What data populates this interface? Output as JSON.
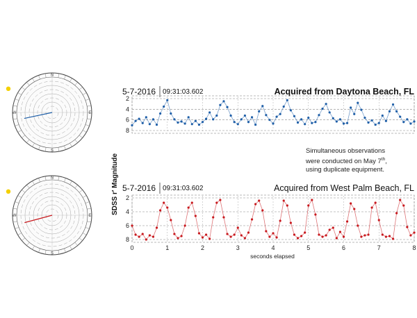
{
  "chart_data": [
    {
      "type": "scatter",
      "date": "5-7-2016",
      "time": "09:31:03.602",
      "title": "Acquired from Daytona Beach, FL",
      "color": "#1f5fa8",
      "x_range": [
        0,
        8
      ],
      "ylim": [
        8,
        2
      ],
      "y_ticks": [
        2,
        4,
        6,
        8
      ],
      "x_ticks": [
        0,
        1,
        2,
        3,
        4,
        5,
        6,
        7,
        8
      ],
      "grid": true,
      "x": [
        0.0,
        0.1,
        0.2,
        0.3,
        0.4,
        0.5,
        0.6,
        0.7,
        0.8,
        0.9,
        1.0,
        1.1,
        1.2,
        1.3,
        1.4,
        1.5,
        1.6,
        1.7,
        1.8,
        1.9,
        2.0,
        2.1,
        2.2,
        2.3,
        2.4,
        2.5,
        2.6,
        2.7,
        2.8,
        2.9,
        3.0,
        3.1,
        3.2,
        3.3,
        3.4,
        3.5,
        3.6,
        3.7,
        3.8,
        3.9,
        4.0,
        4.1,
        4.2,
        4.3,
        4.4,
        4.5,
        4.6,
        4.7,
        4.8,
        4.9,
        5.0,
        5.1,
        5.2,
        5.3,
        5.4,
        5.5,
        5.6,
        5.7,
        5.8,
        5.9,
        6.0,
        6.1,
        6.2,
        6.3,
        6.4,
        6.5,
        6.6,
        6.7,
        6.8,
        6.9,
        7.0,
        7.1,
        7.2,
        7.3,
        7.4,
        7.5,
        7.6,
        7.7,
        7.8,
        7.9,
        8.0
      ],
      "values": [
        7.0,
        6.2,
        5.8,
        6.6,
        5.5,
        6.8,
        5.9,
        6.9,
        4.8,
        3.5,
        2.3,
        4.8,
        5.9,
        6.5,
        6.3,
        6.7,
        5.5,
        6.8,
        6.2,
        6.9,
        6.4,
        5.8,
        4.6,
        5.9,
        5.2,
        3.2,
        2.5,
        3.6,
        5.2,
        6.4,
        6.8,
        5.9,
        5.2,
        6.4,
        5.5,
        6.9,
        4.4,
        3.4,
        5.1,
        6.0,
        6.7,
        5.4,
        4.9,
        3.5,
        2.3,
        4.2,
        5.3,
        6.5,
        5.9,
        6.8,
        5.6,
        6.6,
        6.4,
        5.1,
        3.9,
        3.0,
        4.6,
        5.7,
        6.3,
        5.9,
        6.7,
        6.6,
        3.7,
        4.9,
        2.8,
        4.1,
        5.6,
        6.5,
        6.1,
        6.9,
        6.6,
        5.2,
        6.2,
        4.4,
        3.1,
        4.4,
        5.4,
        6.4,
        5.9,
        6.7,
        6.3
      ]
    },
    {
      "type": "scatter",
      "date": "5-7-2016",
      "time": "09:31:03.602",
      "title": "Acquired from West Palm Beach, FL",
      "color": "#c8191e",
      "x_range": [
        0,
        8
      ],
      "ylim": [
        8,
        2
      ],
      "y_ticks": [
        2,
        4,
        6,
        8
      ],
      "x_ticks": [
        0,
        1,
        2,
        3,
        4,
        5,
        6,
        7,
        8
      ],
      "grid": true,
      "x": [
        0.0,
        0.1,
        0.2,
        0.3,
        0.4,
        0.5,
        0.6,
        0.7,
        0.8,
        0.9,
        1.0,
        1.1,
        1.2,
        1.3,
        1.4,
        1.5,
        1.6,
        1.7,
        1.8,
        1.9,
        2.0,
        2.1,
        2.2,
        2.3,
        2.4,
        2.5,
        2.6,
        2.7,
        2.8,
        2.9,
        3.0,
        3.1,
        3.2,
        3.3,
        3.4,
        3.5,
        3.6,
        3.7,
        3.8,
        3.9,
        4.0,
        4.1,
        4.2,
        4.3,
        4.4,
        4.5,
        4.6,
        4.7,
        4.8,
        4.9,
        5.0,
        5.1,
        5.2,
        5.3,
        5.4,
        5.5,
        5.6,
        5.7,
        5.8,
        5.9,
        6.0,
        6.1,
        6.2,
        6.3,
        6.4,
        6.5,
        6.6,
        6.7,
        6.8,
        6.9,
        7.0,
        7.1,
        7.2,
        7.3,
        7.4,
        7.5,
        7.6,
        7.7,
        7.8,
        7.9,
        8.0
      ],
      "values": [
        6.0,
        7.3,
        7.6,
        7.2,
        8.0,
        7.4,
        7.6,
        6.3,
        3.8,
        2.7,
        3.4,
        5.2,
        7.2,
        7.8,
        7.5,
        6.0,
        3.4,
        2.7,
        4.6,
        7.1,
        7.7,
        7.3,
        7.9,
        4.8,
        2.7,
        2.3,
        4.8,
        7.2,
        7.6,
        7.3,
        6.3,
        7.4,
        7.8,
        7.0,
        5.1,
        2.9,
        2.4,
        3.8,
        6.8,
        7.6,
        7.1,
        7.7,
        5.3,
        2.4,
        3.1,
        5.6,
        7.3,
        7.8,
        7.5,
        7.0,
        3.1,
        2.3,
        4.4,
        7.3,
        7.6,
        7.4,
        6.6,
        6.3,
        7.8,
        6.9,
        7.6,
        5.4,
        2.8,
        3.6,
        6.0,
        7.6,
        7.4,
        7.3,
        3.4,
        2.7,
        5.2,
        7.3,
        7.6,
        7.5,
        7.9,
        4.2,
        2.3,
        3.1,
        6.2,
        7.4,
        7.0
      ]
    }
  ],
  "axes": {
    "ylabel": "SDSS r′ Magnitude",
    "xlabel": "seconds elapsed"
  },
  "note": {
    "line1": "Simultaneous observations",
    "line2_pre": "were conducted on May 7",
    "line2_sup": "th",
    "line2_post": ",",
    "line3": "using duplicate equipment."
  },
  "dials": {
    "compass": [
      "N",
      "E",
      "S",
      "W"
    ],
    "top": {
      "accent": "#f4d000",
      "pointer_color": "#1f5fa8"
    },
    "bottom": {
      "accent": "#f4d000",
      "pointer_color": "#c8191e"
    }
  }
}
